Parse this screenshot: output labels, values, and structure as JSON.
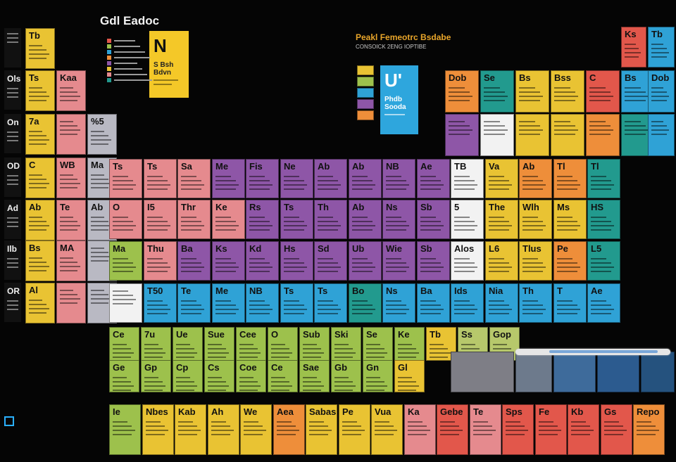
{
  "header": {
    "title": "Gdl Eadoc",
    "right_title": "Peakl Femeotrc Bsdabe",
    "right_subtitle": "CONSOICK 2ENG IOPTIBE"
  },
  "featured_left": {
    "symbol": "N",
    "line1": "S Bsh",
    "line2": "Bdvn"
  },
  "featured_right": {
    "symbol": "U'",
    "line1": "Phdb",
    "line2": "Sooda"
  },
  "left_rows": [
    {
      "label": "",
      "cells": [
        {
          "sym": "Tb"
        }
      ]
    },
    {
      "label": "Ols",
      "cells": [
        {
          "sym": "Ts"
        },
        {
          "sym": "Kaa"
        }
      ]
    },
    {
      "label": "On",
      "cells": [
        {
          "sym": "7a"
        },
        {
          "sym": ""
        },
        {
          "sym": "%5"
        }
      ]
    },
    {
      "label": "OD",
      "cells": [
        {
          "sym": "C"
        },
        {
          "sym": "WB"
        },
        {
          "sym": "Ma"
        }
      ]
    },
    {
      "label": "Ad",
      "cells": [
        {
          "sym": "Ab"
        },
        {
          "sym": "Te"
        },
        {
          "sym": "Ab"
        }
      ]
    },
    {
      "label": "Ilb",
      "cells": [
        {
          "sym": "Bs"
        },
        {
          "sym": "MA"
        },
        {
          "sym": ""
        }
      ]
    },
    {
      "label": "OR",
      "cells": [
        {
          "sym": "Al"
        },
        {
          "sym": ""
        },
        {
          "sym": ""
        }
      ]
    }
  ],
  "grid_rows": [
    [
      "Ts",
      "Ts",
      "Sa",
      "Me",
      "Fis",
      "Ne",
      "Ab",
      "Ab",
      "NB",
      "Ae",
      "TB",
      "Va",
      "Ab",
      "Tl",
      "Tl"
    ],
    [
      "O",
      "I5",
      "Thr",
      "Ke",
      "Rs",
      "Ts",
      "Th",
      "Ab",
      "Ns",
      "Sb",
      "5",
      "The",
      "Wlh",
      "Ms",
      "HS"
    ],
    [
      "Ma",
      "Thu",
      "Ba",
      "Ks",
      "Kd",
      "Hs",
      "Sd",
      "Ub",
      "Wie",
      "Sb",
      "Alos",
      "L6",
      "Tlus",
      "Pe",
      "L5"
    ],
    [
      "",
      "T50",
      "Te",
      "Me",
      "NB",
      "Ts",
      "Ts",
      "Bo",
      "Ns",
      "Ba",
      "Ids",
      "Nia",
      "Th",
      "T",
      "Ae"
    ]
  ],
  "lower_rows": [
    [
      "Ce",
      "7u",
      "Ue",
      "Sue",
      "Cee",
      "O",
      "Sub",
      "Ski",
      "Se",
      "Ke",
      "Tb",
      "Ss",
      "Gop"
    ],
    [
      "Ge",
      "Gp",
      "Cp",
      "Cs",
      "Coe",
      "Ce",
      "Sae",
      "Gb",
      "Gn",
      "Gl"
    ]
  ],
  "bottom_row": [
    "Ie",
    "Nbes",
    "Kab",
    "Ah",
    "We",
    "Aea",
    "Sabas",
    "Pe",
    "Vua",
    "Ka",
    "Gebe",
    "Te",
    "Sps",
    "Fe",
    "Kb",
    "Gs",
    "Repo"
  ],
  "top_right": [
    "Ks",
    "Tb",
    "Dob",
    "Se",
    "Bs",
    "Bss",
    "C",
    "Bs"
  ],
  "slider": {
    "value": 0.7
  },
  "colors": {
    "yellow": "#e9c333",
    "pink": "#e58a8e",
    "purple": "#8e56a7",
    "blue": "#2fa2d6",
    "green": "#9dc14c",
    "orange": "#ee8e3a",
    "red": "#e2574b",
    "teal": "#229a8e",
    "grey": "#b9b9c3",
    "white": "#f2f2f2",
    "darkblue": "#1f6fb8"
  }
}
